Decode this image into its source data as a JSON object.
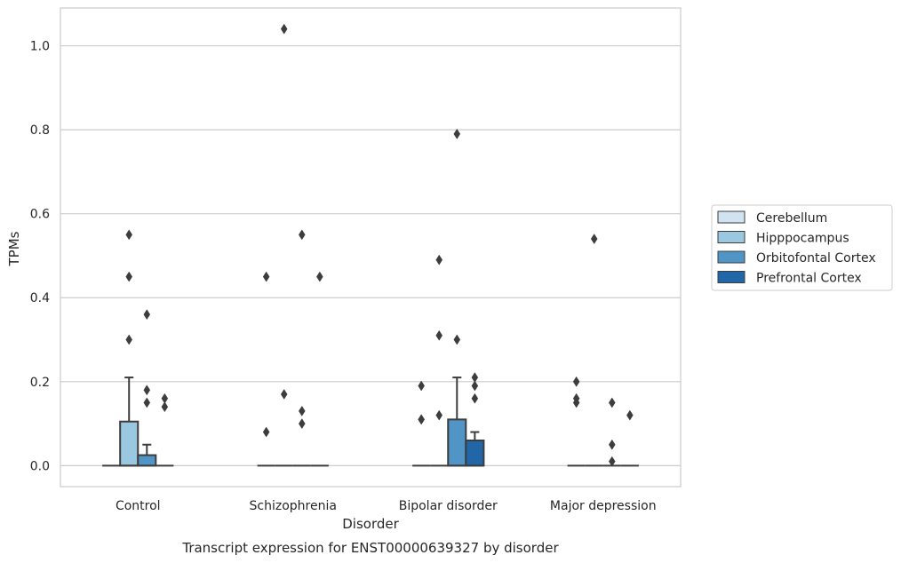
{
  "chart_data": {
    "type": "boxplot",
    "xlabel": "Disorder",
    "ylabel": "TPMs",
    "caption": "Transcript expression for ENST00000639327 by disorder",
    "ylim": [
      -0.05,
      1.09
    ],
    "yticks": [
      0.0,
      0.2,
      0.4,
      0.6,
      0.8,
      1.0
    ],
    "ytick_labels": [
      "0.0",
      "0.2",
      "0.4",
      "0.6",
      "0.8",
      "1.0"
    ],
    "grid": "horizontal",
    "legend_position": "right",
    "categories": [
      "Control",
      "Schizophrenia",
      "Bipolar disorder",
      "Major depression"
    ],
    "series": [
      {
        "name": "Cerebellum",
        "color": "#d1e3f1",
        "boxes": [
          {
            "q1": 0,
            "median": 0,
            "q3": 0,
            "whisker_low": 0,
            "whisker_high": 0,
            "fliers": []
          },
          {
            "q1": 0,
            "median": 0,
            "q3": 0,
            "whisker_low": 0,
            "whisker_high": 0,
            "fliers": [
              0.08,
              0.45
            ]
          },
          {
            "q1": 0,
            "median": 0,
            "q3": 0,
            "whisker_low": 0,
            "whisker_high": 0,
            "fliers": [
              0.11,
              0.11,
              0.19
            ]
          },
          {
            "q1": 0,
            "median": 0,
            "q3": 0,
            "whisker_low": 0,
            "whisker_high": 0,
            "fliers": [
              0.15,
              0.16,
              0.2
            ]
          }
        ]
      },
      {
        "name": "Hipppocampus",
        "color": "#9ac8e0",
        "boxes": [
          {
            "q1": 0,
            "median": 0,
            "q3": 0.105,
            "whisker_low": 0,
            "whisker_high": 0.21,
            "fliers": [
              0.3,
              0.45,
              0.55
            ]
          },
          {
            "q1": 0,
            "median": 0,
            "q3": 0,
            "whisker_low": 0,
            "whisker_high": 0,
            "fliers": [
              0.17,
              1.04
            ]
          },
          {
            "q1": 0,
            "median": 0,
            "q3": 0,
            "whisker_low": 0,
            "whisker_high": 0,
            "fliers": [
              0.12,
              0.31,
              0.49
            ]
          },
          {
            "q1": 0,
            "median": 0,
            "q3": 0,
            "whisker_low": 0,
            "whisker_high": 0,
            "fliers": [
              0.54
            ]
          }
        ]
      },
      {
        "name": "Orbitofontal Cortex",
        "color": "#5195c6",
        "boxes": [
          {
            "q1": 0,
            "median": 0,
            "q3": 0.025,
            "whisker_low": 0,
            "whisker_high": 0.05,
            "fliers": [
              0.15,
              0.18,
              0.36
            ]
          },
          {
            "q1": 0,
            "median": 0,
            "q3": 0,
            "whisker_low": 0,
            "whisker_high": 0,
            "fliers": [
              0.1,
              0.13,
              0.55
            ]
          },
          {
            "q1": 0,
            "median": 0,
            "q3": 0.11,
            "whisker_low": 0,
            "whisker_high": 0.21,
            "fliers": [
              0.3,
              0.79
            ]
          },
          {
            "q1": 0,
            "median": 0,
            "q3": 0,
            "whisker_low": 0,
            "whisker_high": 0,
            "fliers": [
              0.01,
              0.05,
              0.15
            ]
          }
        ]
      },
      {
        "name": "Prefrontal Cortex",
        "color": "#2166a6",
        "boxes": [
          {
            "q1": 0,
            "median": 0,
            "q3": 0,
            "whisker_low": 0,
            "whisker_high": 0,
            "fliers": [
              0.14,
              0.16
            ]
          },
          {
            "q1": 0,
            "median": 0,
            "q3": 0,
            "whisker_low": 0,
            "whisker_high": 0,
            "fliers": [
              0.45
            ]
          },
          {
            "q1": 0,
            "median": 0,
            "q3": 0.06,
            "whisker_low": 0,
            "whisker_high": 0.08,
            "fliers": [
              0.16,
              0.19,
              0.21
            ]
          },
          {
            "q1": 0,
            "median": 0,
            "q3": 0,
            "whisker_low": 0,
            "whisker_high": 0,
            "fliers": [
              0.12
            ]
          }
        ]
      }
    ]
  }
}
